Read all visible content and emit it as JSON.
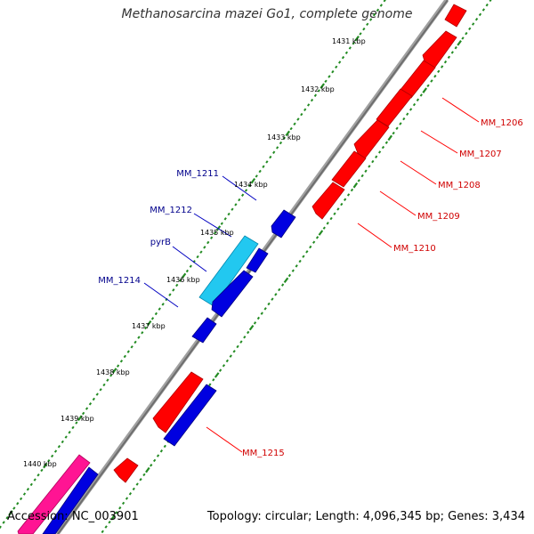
{
  "title": "Methanosarcina mazei Go1, complete genome",
  "footer": {
    "accession": "Accession: NC_003901",
    "summary": "Topology: circular; Length: 4,096,345 bp; Genes: 3,434"
  },
  "colors": {
    "backbone": "#808080",
    "tick": "#228B22",
    "reverse_gene": "#ff0000",
    "forward_gene": "#0000e0",
    "pyrB_gene": "#22c8f0",
    "pink_gene": "#ff1493",
    "reverse_label": "#d00000",
    "forward_label": "#00008b"
  },
  "kbp_labels": [
    "1431 kbp",
    "1432 kbp",
    "1433 kbp",
    "1434 kbp",
    "1435 kbp",
    "1436 kbp",
    "1437 kbp",
    "1438 kbp",
    "1439 kbp",
    "1440 kbp"
  ],
  "reverse_gene_labels": [
    "MM_1206",
    "MM_1207",
    "MM_1208",
    "MM_1209",
    "MM_1210",
    "MM_1215"
  ],
  "forward_gene_labels": [
    "MM_1211",
    "MM_1212",
    "pyrB",
    "MM_1214"
  ]
}
